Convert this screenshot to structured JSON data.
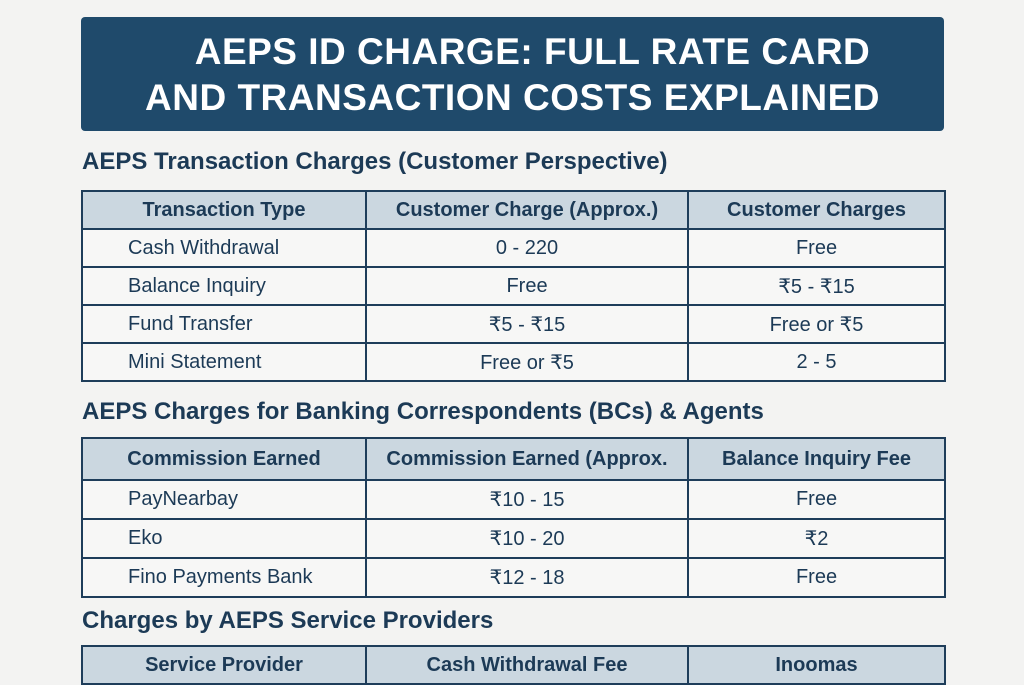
{
  "title": {
    "line1": "AEPS ID CHARGE: FULL RATE CARD",
    "line2": "AND TRANSACTION COSTS EXPLAINED"
  },
  "section1": {
    "heading": "AEPS Transaction Charges (Customer Perspective)",
    "headers": [
      "Transaction Type",
      "Customer Charge (Approx.)",
      "Customer Charges"
    ],
    "rows": [
      [
        "Cash Withdrawal",
        "0 - 220",
        "Free"
      ],
      [
        "Balance Inquiry",
        "Free",
        "₹5 - ₹15"
      ],
      [
        "Fund Transfer",
        "₹5 - ₹15",
        "Free or ₹5"
      ],
      [
        "Mini Statement",
        "Free or ₹5",
        "2 - 5"
      ]
    ]
  },
  "section2": {
    "heading": "AEPS Charges for Banking Correspondents (BCs) & Agents",
    "headers": [
      "Commission Earned",
      "Commission Earned (Approx.",
      "Balance Inquiry Fee"
    ],
    "rows": [
      [
        "PayNearbay",
        "₹10 - 15",
        "Free"
      ],
      [
        "Eko",
        "₹10 - 20",
        "₹2"
      ],
      [
        "Fino Payments Bank",
        "₹12 - 18",
        "Free"
      ]
    ]
  },
  "section3": {
    "heading": "Charges by AEPS Service Providers",
    "headers": [
      "Service Provider",
      "Cash Withdrawal Fee",
      "Inoomas"
    ]
  },
  "colors": {
    "banner": "#1f4a6b",
    "header_fill": "#cbd7e0",
    "text": "#1c3a56"
  }
}
